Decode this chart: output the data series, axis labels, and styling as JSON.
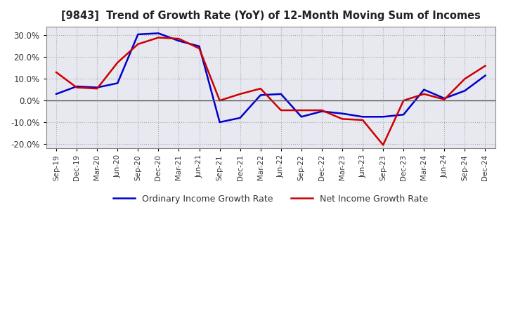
{
  "title": "[9843]  Trend of Growth Rate (YoY) of 12-Month Moving Sum of Incomes",
  "ylim": [
    -0.22,
    0.34
  ],
  "yticks": [
    -0.2,
    -0.1,
    0.0,
    0.1,
    0.2,
    0.3
  ],
  "background_color": "#ffffff",
  "plot_bg_color": "#e8e8f0",
  "grid_color": "#aaaaaa",
  "ordinary_color": "#0000cc",
  "net_color": "#cc0000",
  "legend_ordinary": "Ordinary Income Growth Rate",
  "legend_net": "Net Income Growth Rate",
  "x_labels": [
    "Sep-19",
    "Dec-19",
    "Mar-20",
    "Jun-20",
    "Sep-20",
    "Dec-20",
    "Mar-21",
    "Jun-21",
    "Sep-21",
    "Dec-21",
    "Mar-22",
    "Jun-22",
    "Sep-22",
    "Dec-22",
    "Mar-23",
    "Jun-23",
    "Sep-23",
    "Dec-23",
    "Mar-24",
    "Jun-24",
    "Sep-24",
    "Dec-24"
  ],
  "ordinary_income": [
    0.03,
    0.065,
    0.06,
    0.08,
    0.305,
    0.31,
    0.275,
    0.25,
    -0.1,
    -0.08,
    0.025,
    0.03,
    -0.075,
    -0.05,
    -0.06,
    -0.075,
    -0.075,
    -0.065,
    0.05,
    0.01,
    0.045,
    0.115
  ],
  "net_income": [
    0.13,
    0.06,
    0.055,
    0.175,
    0.26,
    0.29,
    0.285,
    0.24,
    0.0,
    0.03,
    0.055,
    -0.045,
    -0.045,
    -0.045,
    -0.085,
    -0.09,
    -0.205,
    0.0,
    0.03,
    0.005,
    0.1,
    0.16
  ]
}
